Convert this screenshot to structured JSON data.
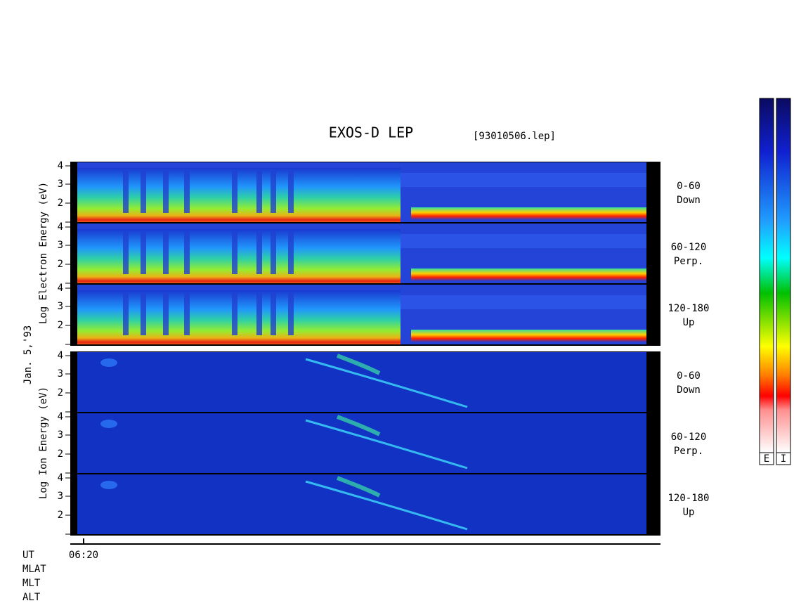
{
  "header": {
    "title": "EXOS-D LEP",
    "file": "[93010506.lep]",
    "date": "Jan. 5,'93"
  },
  "electron": {
    "axis_label": "Log Electron Energy (eV)",
    "panels": [
      {
        "range": "0-60",
        "direction": "Down"
      },
      {
        "range": "60-120",
        "direction": "Perp."
      },
      {
        "range": "120-180",
        "direction": "Up"
      }
    ]
  },
  "ion": {
    "axis_label": "Log Ion Energy (eV)",
    "panels": [
      {
        "range": "0-60",
        "direction": "Down"
      },
      {
        "range": "60-120",
        "direction": "Perp."
      },
      {
        "range": "120-180",
        "direction": "Up"
      }
    ]
  },
  "y_ticks": [
    "4",
    "3",
    "2"
  ],
  "time_axis": {
    "tick": "06:20",
    "labels": [
      "UT",
      "MLAT",
      "MLT",
      "ALT"
    ]
  },
  "colorbars": [
    "E",
    "I"
  ]
}
